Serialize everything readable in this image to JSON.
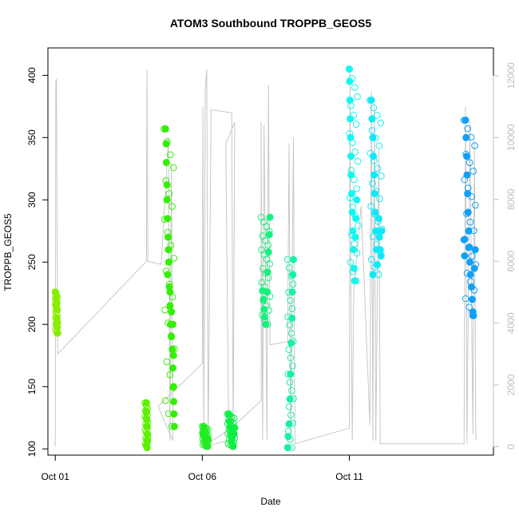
{
  "chart_data": {
    "type": "scatter",
    "title": "ATOM3 Southbound TROPPB_GEOS5",
    "xlabel": "Date",
    "ylabel": "TROPPB_GEOS5",
    "x_ticks": [
      {
        "day": 1,
        "label": "Oct 01"
      },
      {
        "day": 6,
        "label": "Oct 06"
      },
      {
        "day": 11,
        "label": "Oct 11"
      }
    ],
    "y_ticks": [
      100,
      150,
      200,
      250,
      300,
      350,
      400
    ],
    "y2_ticks": [
      0,
      2000,
      4000,
      6000,
      8000,
      10000,
      12000
    ],
    "xlim": [
      0.75,
      15.9
    ],
    "ylim": [
      95,
      422
    ],
    "y2lim": [
      -270,
      12900
    ],
    "colors": {
      "axis": "#000000",
      "secondary_axis": "#bdbdbd",
      "altitude_line": "#c8c8c8"
    },
    "altitude_series": [
      [
        1.0,
        0
      ],
      [
        1.02,
        11800
      ],
      [
        1.04,
        11900
      ],
      [
        1.08,
        3000
      ],
      [
        4.1,
        6000
      ],
      [
        4.12,
        12200
      ],
      [
        4.15,
        6000
      ],
      [
        4.6,
        5900
      ],
      [
        4.85,
        10000
      ],
      [
        4.9,
        200
      ],
      [
        4.95,
        9200
      ],
      [
        5.0,
        200
      ],
      [
        4.5,
        1300
      ],
      [
        6.0,
        2700
      ],
      [
        6.02,
        11000
      ],
      [
        6.05,
        200
      ],
      [
        6.1,
        11500
      ],
      [
        6.15,
        12200
      ],
      [
        6.2,
        100
      ],
      [
        6.3,
        10900
      ],
      [
        7.0,
        10800
      ],
      [
        7.05,
        200
      ],
      [
        7.1,
        10500
      ],
      [
        6.8,
        9800
      ],
      [
        6.9,
        200
      ],
      [
        6.0,
        0
      ],
      [
        7.0,
        600
      ],
      [
        8.0,
        1500
      ],
      [
        8.0,
        10500
      ],
      [
        8.05,
        200
      ],
      [
        8.1,
        10400
      ],
      [
        8.2,
        200
      ],
      [
        8.25,
        11700
      ],
      [
        8.3,
        3300
      ],
      [
        8.9,
        3400
      ],
      [
        8.95,
        9800
      ],
      [
        9.0,
        200
      ],
      [
        9.1,
        10000
      ],
      [
        9.15,
        100
      ],
      [
        11.0,
        600
      ],
      [
        11.02,
        12200
      ],
      [
        11.05,
        5500
      ],
      [
        11.1,
        200
      ],
      [
        11.15,
        5000
      ],
      [
        11.4,
        7800
      ],
      [
        11.7,
        700
      ],
      [
        11.75,
        11500
      ],
      [
        11.8,
        200
      ],
      [
        11.85,
        11000
      ],
      [
        11.9,
        200
      ],
      [
        12.0,
        9600
      ],
      [
        12.05,
        100
      ],
      [
        14.9,
        100
      ],
      [
        14.95,
        11000
      ],
      [
        15.0,
        100
      ],
      [
        15.1,
        10500
      ],
      [
        15.2,
        400
      ],
      [
        15.25,
        9900
      ],
      [
        15.3,
        200
      ]
    ],
    "series": [
      {
        "color": "#88ee00",
        "x_range": [
          1.0,
          1.08
        ],
        "points": [
          [
            1.0,
            226
          ],
          [
            1.02,
            222
          ],
          [
            1.04,
            218
          ],
          [
            1.05,
            212
          ],
          [
            1.06,
            205
          ],
          [
            1.07,
            198
          ],
          [
            1.08,
            193
          ],
          [
            1.03,
            215
          ],
          [
            1.05,
            201
          ]
        ]
      },
      {
        "color": "#5cf000",
        "x_range": [
          4.05,
          4.15
        ],
        "points": [
          [
            4.1,
            137
          ],
          [
            4.1,
            130
          ],
          [
            4.11,
            124
          ],
          [
            4.12,
            118
          ],
          [
            4.13,
            112
          ],
          [
            4.14,
            107
          ],
          [
            4.1,
            103
          ],
          [
            4.12,
            101
          ]
        ]
      },
      {
        "color": "#33f000",
        "x_range": [
          4.7,
          5.05
        ],
        "points": [
          [
            4.75,
            357
          ],
          [
            4.77,
            345
          ],
          [
            4.78,
            330
          ],
          [
            4.8,
            312
          ],
          [
            4.8,
            300
          ],
          [
            4.82,
            285
          ],
          [
            4.84,
            270
          ],
          [
            4.86,
            250
          ],
          [
            4.88,
            230
          ],
          [
            4.9,
            215
          ],
          [
            4.92,
            200
          ],
          [
            4.95,
            190
          ],
          [
            4.98,
            180
          ],
          [
            5.0,
            165
          ],
          [
            5.02,
            150
          ],
          [
            5.03,
            138
          ],
          [
            5.04,
            128
          ],
          [
            5.05,
            118
          ],
          [
            4.9,
            226
          ],
          [
            4.95,
            210
          ],
          [
            5.0,
            200
          ],
          [
            5.02,
            175
          ],
          [
            4.85,
            260
          ],
          [
            4.82,
            240
          ]
        ]
      },
      {
        "color": "#22ee22",
        "x_range": [
          6.0,
          6.2
        ],
        "points": [
          [
            6.05,
            118
          ],
          [
            6.08,
            114
          ],
          [
            6.1,
            110
          ],
          [
            6.12,
            106
          ],
          [
            6.15,
            103
          ],
          [
            6.18,
            102
          ],
          [
            6.2,
            108
          ],
          [
            6.02,
            112
          ]
        ]
      },
      {
        "color": "#10ee44",
        "x_range": [
          6.85,
          7.1
        ],
        "points": [
          [
            6.9,
            128
          ],
          [
            6.92,
            122
          ],
          [
            6.95,
            117
          ],
          [
            6.98,
            112
          ],
          [
            7.0,
            108
          ],
          [
            7.02,
            104
          ],
          [
            7.05,
            102
          ],
          [
            7.08,
            112
          ],
          [
            7.1,
            117
          ]
        ]
      },
      {
        "color": "#18f080",
        "x_range": [
          8.0,
          8.3
        ],
        "points": [
          [
            8.05,
            227
          ],
          [
            8.08,
            220
          ],
          [
            8.1,
            212
          ],
          [
            8.12,
            206
          ],
          [
            8.15,
            200
          ],
          [
            8.2,
            226
          ],
          [
            8.22,
            242
          ],
          [
            8.25,
            258
          ],
          [
            8.28,
            272
          ],
          [
            8.3,
            286
          ]
        ]
      },
      {
        "color": "#18f0a8",
        "x_range": [
          8.9,
          9.1
        ],
        "points": [
          [
            8.9,
            101
          ],
          [
            8.92,
            110
          ],
          [
            8.95,
            120
          ],
          [
            8.98,
            140
          ],
          [
            9.0,
            160
          ],
          [
            9.02,
            185
          ],
          [
            9.05,
            205
          ],
          [
            9.06,
            226
          ],
          [
            9.08,
            240
          ],
          [
            9.1,
            252
          ]
        ]
      },
      {
        "color": "#10f8f0",
        "x_range": [
          11.0,
          11.3
        ],
        "points": [
          [
            11.0,
            405
          ],
          [
            11.01,
            395
          ],
          [
            11.02,
            380
          ],
          [
            11.03,
            365
          ],
          [
            11.04,
            350
          ],
          [
            11.05,
            335
          ],
          [
            11.06,
            320
          ],
          [
            11.08,
            305
          ],
          [
            11.1,
            290
          ],
          [
            11.12,
            275
          ],
          [
            11.14,
            260
          ],
          [
            11.16,
            245
          ],
          [
            11.18,
            235
          ],
          [
            11.2,
            270
          ],
          [
            11.22,
            285
          ],
          [
            11.25,
            300
          ]
        ]
      },
      {
        "color": "#10e8f8",
        "x_range": [
          11.7,
          12.1
        ],
        "points": [
          [
            11.75,
            380
          ],
          [
            11.77,
            365
          ],
          [
            11.8,
            350
          ],
          [
            11.82,
            335
          ],
          [
            11.84,
            320
          ],
          [
            11.86,
            305
          ],
          [
            11.88,
            290
          ],
          [
            11.9,
            275
          ],
          [
            11.92,
            260
          ],
          [
            11.95,
            248
          ],
          [
            11.8,
            240
          ],
          [
            12.0,
            285
          ],
          [
            12.02,
            270
          ],
          [
            12.05,
            260
          ],
          [
            12.08,
            255
          ],
          [
            12.1,
            275
          ]
        ]
      },
      {
        "color": "#10a0f8",
        "x_range": [
          14.9,
          15.3
        ],
        "points": [
          [
            14.95,
            364
          ],
          [
            14.97,
            350
          ],
          [
            14.99,
            335
          ],
          [
            15.0,
            320
          ],
          [
            15.02,
            305
          ],
          [
            15.04,
            290
          ],
          [
            15.06,
            275
          ],
          [
            15.08,
            262
          ],
          [
            15.1,
            250
          ],
          [
            15.12,
            240
          ],
          [
            15.15,
            230
          ],
          [
            15.18,
            220
          ],
          [
            15.2,
            210
          ],
          [
            15.22,
            207
          ],
          [
            14.9,
            268
          ],
          [
            14.92,
            255
          ],
          [
            15.25,
            245
          ],
          [
            15.28,
            260
          ]
        ]
      }
    ]
  }
}
